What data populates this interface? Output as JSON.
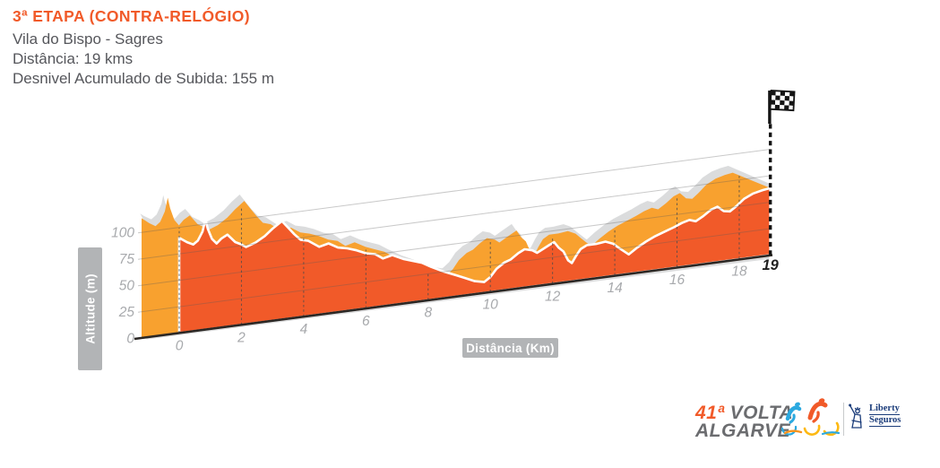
{
  "header": {
    "title": "3ª ETAPA (CONTRA-RELÓGIO)",
    "route": "Vila do Bispo - Sagres",
    "distance": "Distância: 19 kms",
    "elevation_gain": "Desnivel Acumulado de Subida: 155 m"
  },
  "chart_data": {
    "type": "area",
    "xlabel": "Distância (Km)",
    "ylabel": "Altitude (m)",
    "x_ticks": [
      0,
      2,
      4,
      6,
      8,
      10,
      12,
      14,
      16,
      18
    ],
    "finish_km": 19,
    "finish_label": "19",
    "y_ticks": [
      0,
      25,
      50,
      75,
      100
    ],
    "x_range": [
      0,
      19
    ],
    "y_range": [
      0,
      125
    ],
    "grid": true,
    "finish_flag": "checkered-flag",
    "colors": {
      "front": "#F15A29",
      "back": "#F8A12F",
      "shadow": "#DBDCDD",
      "axis": "#2B2724",
      "tick_text": "#A8AAAD",
      "finish_text": "#1F1F1F",
      "badge": "#B2B4B6",
      "badge_text": "#FFFFFF"
    },
    "profile_km_alt": [
      [
        0,
        90
      ],
      [
        0.25,
        85
      ],
      [
        0.45,
        82
      ],
      [
        0.6,
        85
      ],
      [
        0.75,
        93
      ],
      [
        0.84,
        104
      ],
      [
        0.92,
        95
      ],
      [
        1.05,
        85
      ],
      [
        1.2,
        80
      ],
      [
        1.35,
        84
      ],
      [
        1.55,
        87
      ],
      [
        1.8,
        79
      ],
      [
        2.0,
        76
      ],
      [
        2.15,
        73
      ],
      [
        2.45,
        76
      ],
      [
        2.75,
        81
      ],
      [
        3.0,
        87
      ],
      [
        3.3,
        93
      ],
      [
        3.5,
        86
      ],
      [
        3.7,
        79
      ],
      [
        3.9,
        73
      ],
      [
        4.15,
        71
      ],
      [
        4.5,
        64
      ],
      [
        4.8,
        66
      ],
      [
        5.1,
        61
      ],
      [
        5.4,
        59
      ],
      [
        5.7,
        56
      ],
      [
        6.0,
        52
      ],
      [
        6.3,
        50
      ],
      [
        6.55,
        45
      ],
      [
        6.85,
        47
      ],
      [
        7.2,
        42
      ],
      [
        7.5,
        39
      ],
      [
        7.8,
        36
      ],
      [
        8.1,
        31
      ],
      [
        8.5,
        25
      ],
      [
        8.9,
        20
      ],
      [
        9.2,
        16
      ],
      [
        9.5,
        12
      ],
      [
        9.8,
        10
      ],
      [
        10.0,
        14
      ],
      [
        10.2,
        21
      ],
      [
        10.45,
        26
      ],
      [
        10.65,
        28
      ],
      [
        10.9,
        33
      ],
      [
        11.1,
        36
      ],
      [
        11.35,
        34
      ],
      [
        11.5,
        31
      ],
      [
        11.7,
        34
      ],
      [
        11.9,
        37
      ],
      [
        12.05,
        39
      ],
      [
        12.2,
        33
      ],
      [
        12.35,
        29
      ],
      [
        12.5,
        20
      ],
      [
        12.62,
        17
      ],
      [
        12.75,
        23
      ],
      [
        12.9,
        29
      ],
      [
        13.1,
        32
      ],
      [
        13.4,
        32
      ],
      [
        13.7,
        33
      ],
      [
        13.95,
        30
      ],
      [
        14.15,
        25
      ],
      [
        14.45,
        18
      ],
      [
        14.7,
        23
      ],
      [
        15.0,
        28
      ],
      [
        15.3,
        32
      ],
      [
        15.6,
        35
      ],
      [
        15.9,
        38
      ],
      [
        16.15,
        41
      ],
      [
        16.4,
        43
      ],
      [
        16.6,
        41
      ],
      [
        16.85,
        45
      ],
      [
        17.1,
        50
      ],
      [
        17.3,
        52
      ],
      [
        17.5,
        47
      ],
      [
        17.7,
        46
      ],
      [
        17.9,
        50
      ],
      [
        18.15,
        56
      ],
      [
        18.45,
        60
      ],
      [
        18.75,
        62
      ],
      [
        19,
        63
      ]
    ]
  },
  "footer": {
    "edition_label": "41ª",
    "race_name_line1": "VOLTA",
    "race_name_line2": "ALGARVE",
    "sponsor_line1": "Liberty",
    "sponsor_line2": "Seguros"
  }
}
